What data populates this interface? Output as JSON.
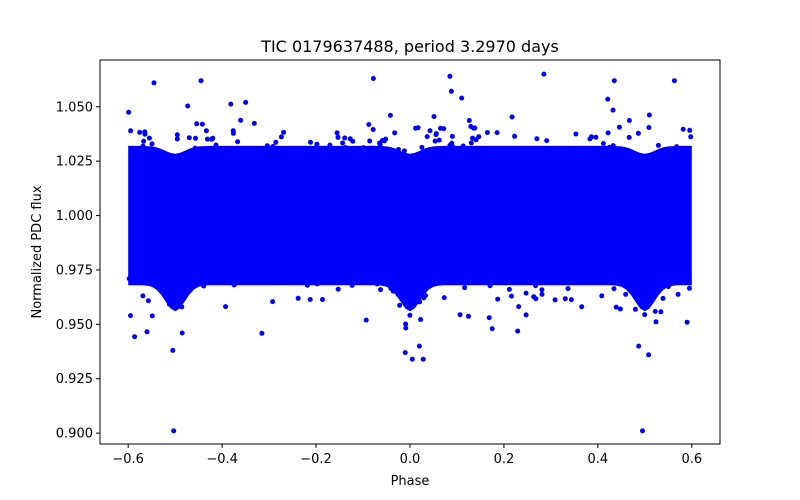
{
  "chart_data": {
    "type": "scatter",
    "title": "TIC 0179637488, period 3.2970 days",
    "xlabel": "Phase",
    "ylabel": "Normalized PDC flux",
    "xlim": [
      -0.66,
      0.66
    ],
    "ylim": [
      0.895,
      1.0715
    ],
    "xticks": [
      {
        "value": -0.6,
        "label": "−0.6"
      },
      {
        "value": -0.4,
        "label": "−0.4"
      },
      {
        "value": -0.2,
        "label": "−0.2"
      },
      {
        "value": 0.0,
        "label": "0.0"
      },
      {
        "value": 0.2,
        "label": "0.2"
      },
      {
        "value": 0.4,
        "label": "0.4"
      },
      {
        "value": 0.6,
        "label": "0.6"
      }
    ],
    "yticks": [
      {
        "value": 0.9,
        "label": "0.900"
      },
      {
        "value": 0.925,
        "label": "0.925"
      },
      {
        "value": 0.95,
        "label": "0.950"
      },
      {
        "value": 0.975,
        "label": "0.975"
      },
      {
        "value": 1.0,
        "label": "1.000"
      },
      {
        "value": 1.025,
        "label": "1.025"
      },
      {
        "value": 1.05,
        "label": "1.050"
      }
    ],
    "grid": false,
    "marker_color": "#0000ff",
    "series": [
      {
        "name": "flux",
        "band": {
          "x_range": [
            -0.6,
            0.6
          ],
          "center": 1.0,
          "dense_halfwidth": 0.032,
          "transit_phases": [
            0.0,
            -0.5,
            0.5
          ],
          "transit_depth": 0.012
        },
        "points": [
          {
            "x": -0.503,
            "y": 0.901
          },
          {
            "x": 0.495,
            "y": 0.901
          },
          {
            "x": 0.285,
            "y": 1.065
          },
          {
            "x": 0.085,
            "y": 1.064
          },
          {
            "x": -0.078,
            "y": 1.063
          },
          {
            "x": -0.445,
            "y": 1.062
          },
          {
            "x": 0.563,
            "y": 1.062
          },
          {
            "x": -0.545,
            "y": 1.061
          },
          {
            "x": 0.435,
            "y": 1.062
          },
          {
            "x": 0.005,
            "y": 0.934
          },
          {
            "x": 0.028,
            "y": 0.934
          },
          {
            "x": -0.505,
            "y": 0.938
          },
          {
            "x": 0.508,
            "y": 0.936
          },
          {
            "x": 0.487,
            "y": 0.94
          },
          {
            "x": -0.485,
            "y": 0.946
          },
          {
            "x": -0.595,
            "y": 0.954
          },
          {
            "x": 0.59,
            "y": 0.951
          },
          {
            "x": -0.01,
            "y": 0.937
          },
          {
            "x": 0.02,
            "y": 0.94
          },
          {
            "x": 0.175,
            "y": 0.948
          },
          {
            "x": -0.35,
            "y": 1.052
          },
          {
            "x": 0.11,
            "y": 1.054
          }
        ]
      }
    ]
  }
}
